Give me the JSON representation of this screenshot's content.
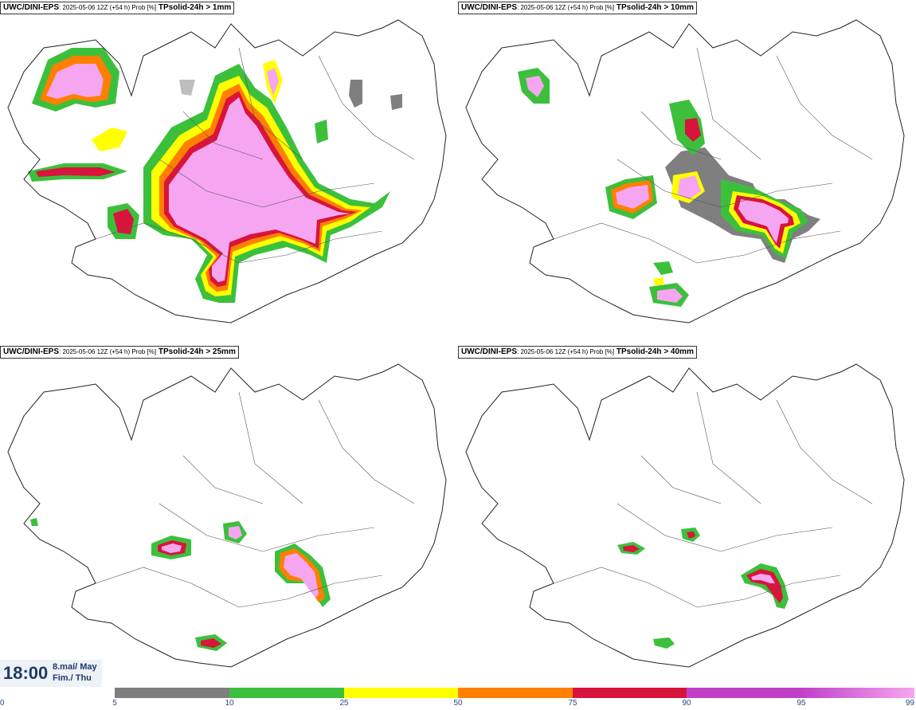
{
  "panels": [
    {
      "model": "UWC/DINI-EPS",
      "meta": ": 2025-05-06 12Z (+54 h) Prob [%]",
      "param": "TPsolid-24h > 1mm"
    },
    {
      "model": "UWC/DINI-EPS",
      "meta": ": 2025-05-06 12Z (+54 h) Prob [%]",
      "param": "TPsolid-24h > 10mm"
    },
    {
      "model": "UWC/DINI-EPS",
      "meta": ": 2025-05-06 12Z (+54 h) Prob [%]",
      "param": "TPsolid-24h > 25mm"
    },
    {
      "model": "UWC/DINI-EPS",
      "meta": ": 2025-05-06 12Z (+54 h) Prob [%]",
      "param": "TPsolid-24h > 40mm"
    }
  ],
  "valid_time": {
    "time": "18:00",
    "date_line1": "8.maí/ May",
    "date_line2": "Fim./ Thu"
  },
  "colorbar": {
    "ticks": [
      "0",
      "5",
      "10",
      "25",
      "50",
      "75",
      "90",
      "95",
      "99"
    ],
    "colors": [
      "#bdbdbd",
      "#7f7f7f",
      "#3cc03c",
      "#ffff00",
      "#ff7f00",
      "#d8143c",
      "#c040c8",
      "#f6a6f0"
    ]
  }
}
